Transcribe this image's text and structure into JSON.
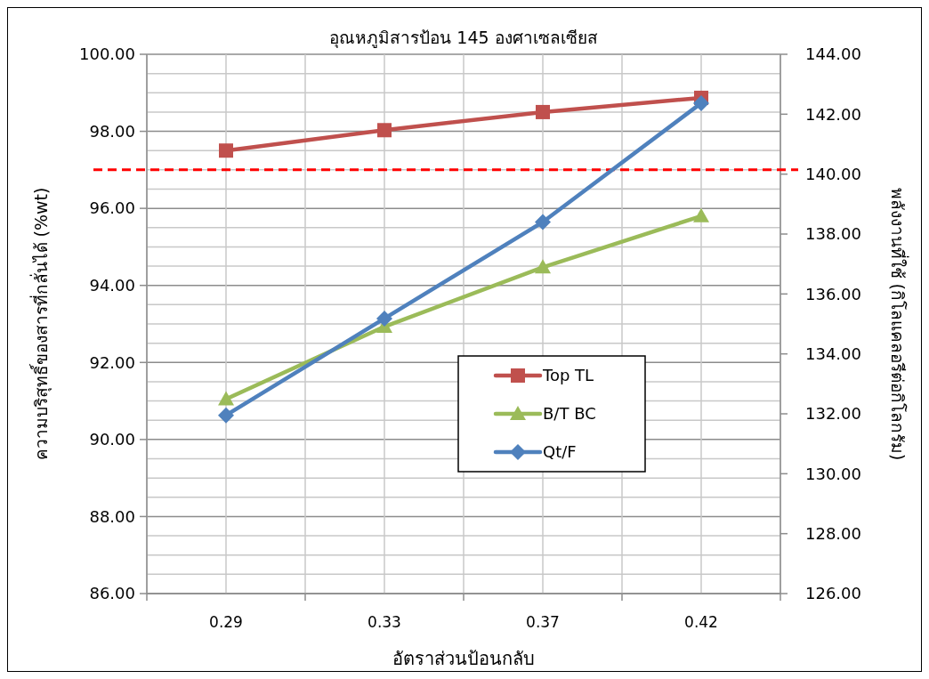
{
  "chart_data": {
    "type": "line",
    "title": "อุณหภูมิสารป้อน 145 องศาเซลเซียส",
    "xlabel": "อัตราส่วนป้อนกลับ",
    "ylabel": "ความบริสุทธิ์ของสารที่กลั่นได้  (%wt)",
    "y2label": "พลังงานที่ใช้  (กิโลแคลอรีต่อกิโลกรัม)",
    "categories": [
      "0.29",
      "0.33",
      "0.37",
      "0.42"
    ],
    "series": [
      {
        "name": "Top TL",
        "color": "#c0504d",
        "marker": "square",
        "values": [
          97.5,
          98.03,
          98.5,
          98.87
        ]
      },
      {
        "name": "B/T BC",
        "color": "#9bbb59",
        "marker": "triangle",
        "values": [
          91.05,
          92.93,
          94.47,
          95.8
        ]
      },
      {
        "name": "Qt/F",
        "color": "#4f81bd",
        "marker": "diamond",
        "axis": "y2",
        "values": [
          131.95,
          135.18,
          138.4,
          142.37
        ]
      }
    ],
    "ylim": [
      86,
      100
    ],
    "yticks": [
      {
        "value": 86,
        "label": "86.00"
      },
      {
        "value": 88,
        "label": "88.00"
      },
      {
        "value": 90,
        "label": "90.00"
      },
      {
        "value": 92,
        "label": "92.00"
      },
      {
        "value": 94,
        "label": "94.00"
      },
      {
        "value": 96,
        "label": "96.00"
      },
      {
        "value": 98,
        "label": "98.00"
      },
      {
        "value": 100,
        "label": "100.00"
      }
    ],
    "y2lim": [
      126,
      144
    ],
    "y2ticks": [
      {
        "value": 126,
        "label": "126.00"
      },
      {
        "value": 128,
        "label": "128.00"
      },
      {
        "value": 130,
        "label": "130.00"
      },
      {
        "value": 132,
        "label": "132.00"
      },
      {
        "value": 134,
        "label": "134.00"
      },
      {
        "value": 136,
        "label": "136.00"
      },
      {
        "value": 138,
        "label": "138.00"
      },
      {
        "value": 140,
        "label": "140.00"
      },
      {
        "value": 142,
        "label": "142.00"
      },
      {
        "value": 144,
        "label": "144.00"
      }
    ],
    "ref_lines": [
      {
        "axis": "y",
        "value": 97.0,
        "color": "#ff0000",
        "line_style": "dashed"
      }
    ],
    "grid": true,
    "legend": "right",
    "line_style": "solid"
  }
}
